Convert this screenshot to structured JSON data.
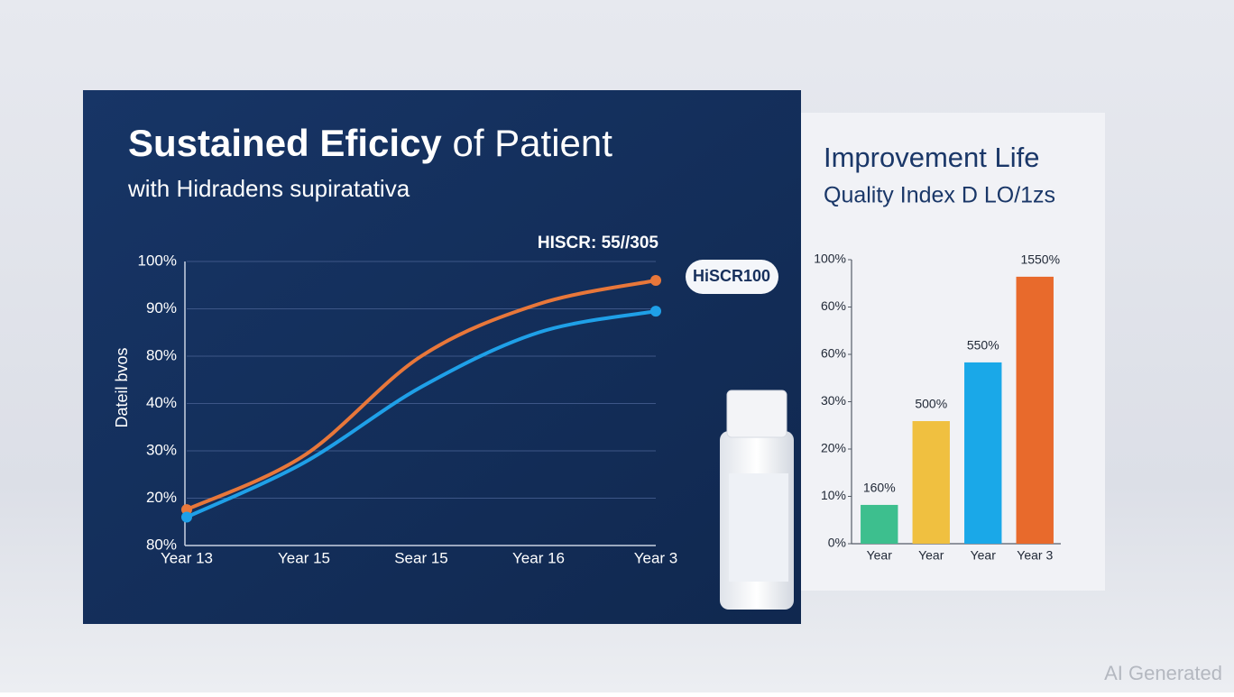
{
  "chart_data": [
    {
      "type": "line",
      "title": "Sustained Eficicy",
      "title_rest": "of Patient",
      "subtitle": "with Hidradens supiratativa",
      "y_label": "Dateil bvos",
      "annotation": "HISCR: 55//305",
      "badge": "HiSCR100",
      "categories": [
        "Year 13",
        "Year 15",
        "Sear 15",
        "Year 16",
        "Year 3"
      ],
      "series": [
        {
          "name": "Orange line",
          "color": "#e8773a",
          "values": [
            0.76,
            1.9,
            4,
            5.1,
            5.6
          ]
        },
        {
          "name": "Blue line",
          "color": "#1fa0e8",
          "values": [
            0.6,
            1.75,
            3.35,
            4.5,
            4.95
          ]
        }
      ],
      "ylim": [
        0,
        6
      ],
      "yticks": [
        {
          "value": 0,
          "label": "80%"
        },
        {
          "value": 1,
          "label": "20%"
        },
        {
          "value": 2,
          "label": "30%"
        },
        {
          "value": 3,
          "label": "40%"
        },
        {
          "value": 4,
          "label": "80%"
        },
        {
          "value": 5,
          "label": "90%"
        },
        {
          "value": 6,
          "label": "100%"
        }
      ],
      "grid": true
    },
    {
      "type": "bar",
      "title": "Improvement Life",
      "subtitle": "Quality Index D LO/1zs",
      "categories": [
        "Year",
        "Year",
        "Year",
        "Year 3"
      ],
      "values": [
        0.82,
        2.59,
        3.83,
        5.64
      ],
      "colors": [
        "#3dbf8e",
        "#f0c040",
        "#1aa8e8",
        "#e86a2c"
      ],
      "annotations": [
        "160%",
        "500%",
        "550%",
        "1550%"
      ],
      "ylim": [
        0,
        6
      ],
      "yticks": [
        {
          "value": 0,
          "label": "0%"
        },
        {
          "value": 1,
          "label": "10%"
        },
        {
          "value": 2,
          "label": "20%"
        },
        {
          "value": 3,
          "label": "30%"
        },
        {
          "value": 4,
          "label": "60%"
        },
        {
          "value": 5,
          "label": "60%"
        },
        {
          "value": 6,
          "label": "100%"
        }
      ],
      "grid": false
    }
  ],
  "watermark": "AI Generated"
}
